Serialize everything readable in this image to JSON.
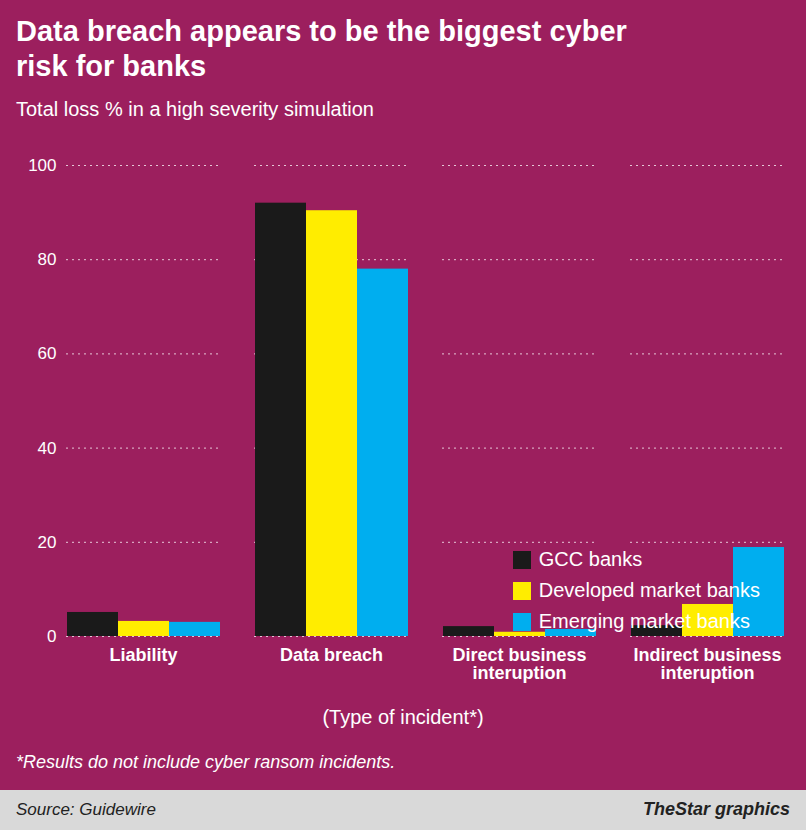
{
  "chart_data": {
    "type": "bar",
    "title": "Data breach appears to be the biggest cyber risk for banks",
    "subtitle": "Total loss % in a high severity simulation",
    "x_label": "(Type of incident*)",
    "categories": [
      "Liability",
      "Data breach",
      "Direct business interuption",
      "Indirect business interuption"
    ],
    "series": [
      {
        "name": "GCC banks",
        "color": "#1a1a1a",
        "values": [
          5.1,
          92,
          2.1,
          2.3
        ]
      },
      {
        "name": "Developed market banks",
        "color": "#ffed00",
        "values": [
          3.2,
          90.4,
          0.9,
          6.8
        ]
      },
      {
        "name": "Emerging market banks",
        "color": "#00aeef",
        "values": [
          3.0,
          78,
          1.5,
          18.9
        ]
      }
    ],
    "ylim": [
      0,
      100
    ],
    "yticks": [
      0,
      20,
      40,
      60,
      80,
      100
    ],
    "grid": true,
    "legend": "right",
    "footnote": "*Results do not include cyber ransom incidents.",
    "source": "Source: Guidewire",
    "credit": "TheStar graphics"
  }
}
